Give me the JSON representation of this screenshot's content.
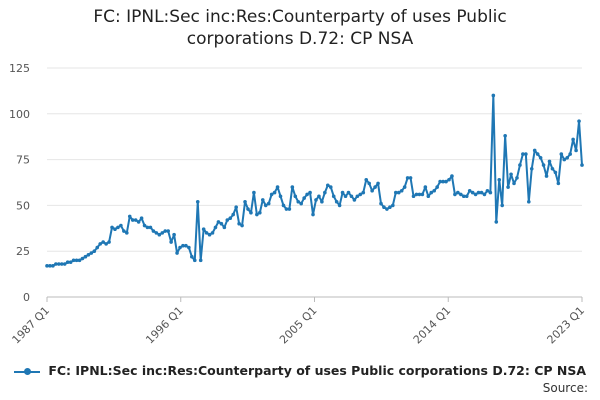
{
  "chart_data": {
    "type": "line",
    "title": [
      "FC: IPNL:Sec inc:Res:Counterparty of uses Public",
      "corporations D.72: CP NSA"
    ],
    "xlabel": "",
    "ylabel": "",
    "ylim": [
      0,
      125
    ],
    "yticks": [
      "0",
      "25",
      "50",
      "75",
      "100",
      "125"
    ],
    "xtick_labels": [
      "1987 Q1",
      "1996 Q1",
      "2005 Q1",
      "2014 Q1",
      "2023 Q1"
    ],
    "x_start": "1987 Q1",
    "x_end": "2023 Q1",
    "grid": true,
    "legend_position": "bottom",
    "source_label": "Source:",
    "color": "#1f77b4",
    "series": [
      {
        "name": "FC: IPNL:Sec inc:Res:Counterparty of uses Public corporations D.72: CP NSA",
        "values": [
          17,
          17,
          17,
          18,
          18,
          18,
          18,
          19,
          19,
          20,
          20,
          20,
          21,
          22,
          23,
          24,
          25,
          27,
          29,
          30,
          29,
          30,
          38,
          37,
          38,
          39,
          36,
          35,
          44,
          42,
          42,
          41,
          43,
          39,
          38,
          38,
          36,
          35,
          34,
          35,
          36,
          36,
          30,
          34,
          24,
          27,
          28,
          28,
          27,
          22,
          20,
          52,
          20,
          37,
          35,
          34,
          35,
          38,
          41,
          40,
          38,
          42,
          43,
          45,
          49,
          40,
          39,
          52,
          48,
          46,
          57,
          45,
          46,
          53,
          50,
          51,
          56,
          57,
          60,
          55,
          50,
          48,
          48,
          60,
          55,
          52,
          51,
          54,
          56,
          57,
          45,
          53,
          55,
          52,
          57,
          61,
          60,
          55,
          52,
          50,
          57,
          55,
          57,
          55,
          53,
          55,
          56,
          57,
          64,
          62,
          58,
          60,
          62,
          51,
          49,
          48,
          49,
          50,
          57,
          57,
          58,
          60,
          65,
          65,
          55,
          56,
          56,
          56,
          60,
          55,
          57,
          58,
          60,
          63,
          63,
          63,
          64,
          66,
          56,
          57,
          56,
          55,
          55,
          58,
          57,
          56,
          57,
          57,
          56,
          58,
          57,
          110,
          41,
          64,
          50,
          88,
          60,
          67,
          62,
          65,
          72,
          78,
          78,
          52,
          70,
          80,
          78,
          76,
          72,
          66,
          74,
          70,
          68,
          62,
          78,
          75,
          76,
          78,
          86,
          80,
          96,
          72
        ]
      }
    ]
  }
}
